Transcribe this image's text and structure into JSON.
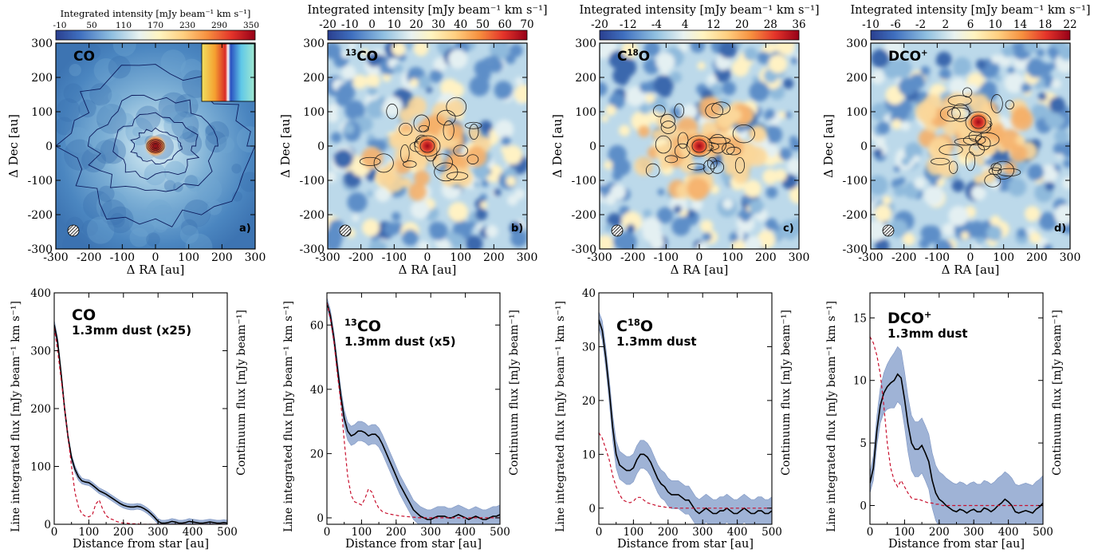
{
  "chart_data": [
    {
      "type": "heatmap",
      "panel": "a)",
      "molecule": "CO",
      "sup": "",
      "colorbar_label": "Integrated intensity [mJy beam⁻¹ km s⁻¹]",
      "colorbar_ticks": [
        "-10",
        "50",
        "110",
        "170",
        "230",
        "290",
        "350"
      ],
      "colorbar_range": [
        -10,
        350
      ],
      "xlabel": "Δ RA [au]",
      "ylabel": "Δ Dec [au]",
      "xlim": [
        -300,
        300
      ],
      "ylim": [
        -300,
        300
      ],
      "xticks": [
        "-300",
        "-200",
        "-100",
        "0",
        "100",
        "200",
        "300"
      ],
      "yticks": [
        "-300",
        "-200",
        "-100",
        "0",
        "100",
        "200",
        "300"
      ],
      "has_inset": true
    },
    {
      "type": "heatmap",
      "panel": "b)",
      "molecule": "CO",
      "sup": "13",
      "colorbar_label": "Integrated intensity [mJy beam⁻¹ km s⁻¹]",
      "colorbar_ticks": [
        "-20",
        "-10",
        "0",
        "10",
        "20",
        "30",
        "40",
        "50",
        "60",
        "70"
      ],
      "colorbar_range": [
        -20,
        70
      ],
      "xlabel": "Δ RA [au]",
      "ylabel": "Δ Dec [au]",
      "xlim": [
        -300,
        300
      ],
      "ylim": [
        -300,
        300
      ],
      "xticks": [
        "-300",
        "-200",
        "-100",
        "0",
        "100",
        "200",
        "300"
      ],
      "yticks": [
        "-300",
        "-200",
        "-100",
        "0",
        "100",
        "200",
        "300"
      ]
    },
    {
      "type": "heatmap",
      "panel": "c)",
      "molecule": "O",
      "pre": "C",
      "sup": "18",
      "colorbar_label": "Integrated intensity [mJy beam⁻¹ km s⁻¹]",
      "colorbar_ticks": [
        "-20",
        "-12",
        "-4",
        "4",
        "12",
        "20",
        "28",
        "36"
      ],
      "colorbar_range": [
        -20,
        36
      ],
      "xlabel": "Δ RA [au]",
      "ylabel": "Δ Dec [au]",
      "xlim": [
        -300,
        300
      ],
      "ylim": [
        -300,
        300
      ],
      "xticks": [
        "-300",
        "-200",
        "-100",
        "0",
        "100",
        "200",
        "300"
      ],
      "yticks": [
        "-300",
        "-200",
        "-100",
        "0",
        "100",
        "200",
        "300"
      ]
    },
    {
      "type": "heatmap",
      "panel": "d)",
      "molecule": "DCO",
      "supr": "+",
      "colorbar_label": "Integrated intensity [mJy beam⁻¹ km s⁻¹]",
      "colorbar_ticks": [
        "-10",
        "-6",
        "-2",
        "2",
        "6",
        "10",
        "14",
        "18",
        "22"
      ],
      "colorbar_range": [
        -10,
        22
      ],
      "xlabel": "Δ RA [au]",
      "ylabel": "Δ Dec [au]",
      "xlim": [
        -300,
        300
      ],
      "ylim": [
        -300,
        300
      ],
      "xticks": [
        "-300",
        "-200",
        "-100",
        "0",
        "100",
        "200",
        "300"
      ],
      "yticks": [
        "-300",
        "-200",
        "-100",
        "0",
        "100",
        "200",
        "300"
      ]
    },
    {
      "type": "line",
      "molecule": "CO",
      "sup": "",
      "dust_label": "1.3mm dust (x25)",
      "xlabel": "Distance from star [au]",
      "ylabel": "Line integrated flux [mJy beam⁻¹ km s⁻¹]",
      "ylabel_right": "Continuum flux [mJy beam⁻¹]",
      "xlim": [
        0,
        500
      ],
      "ylim": [
        0,
        400
      ],
      "xticks": [
        0,
        100,
        200,
        300,
        400,
        500
      ],
      "yticks": [
        0,
        100,
        200,
        300,
        400
      ],
      "x": [
        0,
        10,
        20,
        30,
        40,
        50,
        60,
        70,
        80,
        90,
        100,
        110,
        120,
        130,
        140,
        150,
        160,
        170,
        180,
        190,
        200,
        210,
        220,
        230,
        240,
        250,
        260,
        270,
        280,
        290,
        300,
        310,
        320,
        330,
        340,
        350,
        360,
        370,
        380,
        390,
        400,
        410,
        420,
        430,
        440,
        450,
        460,
        470,
        480,
        490,
        500
      ],
      "line": [
        345,
        315,
        260,
        200,
        150,
        115,
        95,
        82,
        75,
        73,
        72,
        68,
        63,
        58,
        55,
        52,
        48,
        44,
        40,
        36,
        33,
        31,
        30,
        30,
        31,
        30,
        27,
        23,
        18,
        12,
        5,
        2,
        2,
        3,
        5,
        4,
        2,
        2,
        3,
        5,
        4,
        3,
        2,
        2,
        3,
        4,
        3,
        2,
        2,
        3,
        2
      ],
      "err": [
        8,
        8,
        7,
        7,
        6,
        6,
        6,
        6,
        5,
        5,
        5,
        5,
        5,
        5,
        5,
        5,
        5,
        5,
        5,
        5,
        5,
        5,
        5,
        5,
        5,
        5,
        5,
        5,
        5,
        5,
        5,
        5,
        5,
        5,
        5,
        5,
        5,
        5,
        5,
        5,
        5,
        5,
        5,
        5,
        5,
        5,
        5,
        5,
        5,
        5,
        5
      ],
      "dust": [
        340,
        300,
        250,
        200,
        150,
        100,
        55,
        30,
        18,
        14,
        13,
        16,
        35,
        42,
        26,
        15,
        10,
        8,
        5,
        3,
        2,
        2,
        1,
        1,
        1,
        0,
        0,
        0,
        0,
        0,
        0,
        0,
        0,
        0,
        0,
        0,
        0,
        0,
        0,
        0,
        0,
        0,
        0,
        0,
        0,
        0,
        0,
        0,
        0,
        0,
        0
      ]
    },
    {
      "type": "line",
      "molecule": "CO",
      "sup": "13",
      "dust_label": "1.3mm dust (x5)",
      "xlabel": "Distance from star [au]",
      "ylabel": "Line integrated flux [mJy beam⁻¹ km s⁻¹]",
      "ylabel_right": "Continuum flux [mJy beam⁻¹]",
      "xlim": [
        0,
        500
      ],
      "ylim": [
        -2,
        70
      ],
      "xticks": [
        0,
        100,
        200,
        300,
        400,
        500
      ],
      "yticks": [
        0,
        20,
        40,
        60
      ],
      "x": [
        0,
        10,
        20,
        30,
        40,
        50,
        60,
        70,
        80,
        90,
        100,
        110,
        120,
        130,
        140,
        150,
        160,
        170,
        180,
        190,
        200,
        210,
        220,
        230,
        240,
        250,
        260,
        270,
        280,
        290,
        300,
        310,
        320,
        330,
        340,
        350,
        360,
        370,
        380,
        390,
        400,
        410,
        420,
        430,
        440,
        450,
        460,
        470,
        480,
        490,
        500
      ],
      "line": [
        67,
        63,
        56,
        47,
        38,
        31,
        27,
        25.5,
        26,
        27,
        27,
        26.5,
        25.5,
        26,
        26,
        25,
        23,
        20.5,
        18,
        15.5,
        13,
        10.5,
        8.5,
        6.5,
        4.5,
        2.5,
        1.5,
        0.5,
        0,
        -0.5,
        -0.5,
        0,
        0.5,
        0.5,
        0.5,
        0,
        0,
        0.5,
        1,
        0.5,
        0,
        -0.5,
        0,
        0.5,
        0,
        -0.5,
        -0.5,
        0,
        0.5,
        0.5,
        1
      ],
      "err": [
        1.5,
        1.8,
        2,
        2.2,
        2.4,
        2.6,
        2.8,
        3,
        3,
        3,
        3,
        3,
        3,
        3,
        3,
        3,
        3,
        3,
        3,
        3,
        3,
        3,
        3,
        3,
        3,
        3,
        3,
        3,
        3,
        3,
        3,
        3,
        3,
        3,
        3,
        3,
        3,
        3,
        3,
        3,
        3,
        3,
        3,
        3,
        3,
        3,
        3,
        3,
        3,
        3,
        3
      ],
      "dust": [
        67,
        62,
        55,
        45,
        36,
        24,
        13,
        7,
        5,
        4.5,
        4,
        6,
        9,
        8,
        5,
        3,
        2,
        1.5,
        1.2,
        1,
        0.8,
        0.6,
        0.5,
        0.4,
        0.3,
        0.2,
        0.1,
        0,
        0,
        0,
        0,
        0,
        0,
        0,
        0,
        0,
        0,
        0,
        0,
        0,
        0,
        0,
        0,
        0,
        0,
        0,
        0,
        0,
        0,
        0,
        0
      ]
    },
    {
      "type": "line",
      "molecule": "O",
      "pre": "C",
      "sup": "18",
      "dust_label": "1.3mm dust",
      "xlabel": "Distance from star [au]",
      "ylabel": "Line integrated flux [mJy beam⁻¹ km s⁻¹]",
      "ylabel_right": "Continuum flux [mJy beam⁻¹]",
      "xlim": [
        0,
        500
      ],
      "ylim": [
        -3,
        40
      ],
      "xticks": [
        0,
        100,
        200,
        300,
        400,
        500
      ],
      "yticks": [
        0,
        10,
        20,
        30,
        40
      ],
      "x": [
        0,
        10,
        20,
        30,
        40,
        50,
        60,
        70,
        80,
        90,
        100,
        110,
        120,
        130,
        140,
        150,
        160,
        170,
        180,
        190,
        200,
        210,
        220,
        230,
        240,
        250,
        260,
        270,
        280,
        290,
        300,
        310,
        320,
        330,
        340,
        350,
        360,
        370,
        380,
        390,
        400,
        410,
        420,
        430,
        440,
        450,
        460,
        470,
        480,
        490,
        500
      ],
      "line": [
        35,
        33,
        28,
        22,
        15,
        10,
        8,
        7.5,
        7,
        7,
        7.5,
        9,
        10,
        10,
        9.5,
        8.5,
        7,
        5.5,
        4.5,
        4,
        3,
        2.5,
        2.5,
        2.5,
        2,
        1.5,
        1.5,
        0.5,
        -0.5,
        -1,
        -0.5,
        0,
        -0.5,
        -1,
        -1,
        -0.5,
        -0.5,
        0,
        -0.5,
        -1,
        -1,
        -0.5,
        0,
        -0.5,
        -1,
        -1,
        -0.5,
        -0.5,
        -1,
        -1,
        -0.5
      ],
      "err": [
        1.5,
        1.8,
        2,
        2.2,
        2.4,
        2.5,
        2.6,
        2.6,
        2.6,
        2.6,
        2.6,
        2.6,
        2.6,
        2.6,
        2.6,
        2.6,
        2.6,
        2.6,
        2.6,
        2.6,
        2.6,
        2.6,
        2.6,
        2.6,
        2.6,
        2.6,
        2.6,
        2.6,
        2.6,
        2.6,
        2.6,
        2.6,
        2.6,
        2.6,
        2.6,
        2.6,
        2.6,
        2.6,
        2.6,
        2.6,
        2.6,
        2.6,
        2.6,
        2.6,
        2.6,
        2.6,
        2.6,
        2.6,
        2.6,
        2.6,
        2.6
      ],
      "dust": [
        14,
        13,
        11,
        9,
        6,
        4,
        2.5,
        1.5,
        1.2,
        1,
        1.3,
        2,
        2,
        1.5,
        1,
        0.8,
        0.6,
        0.4,
        0.3,
        0.2,
        0.1,
        0.1,
        0,
        0,
        0,
        0,
        0,
        0,
        0,
        0,
        0,
        0,
        0,
        0,
        0,
        0,
        0,
        0,
        0,
        0,
        0,
        0,
        0,
        0,
        0,
        0,
        0,
        0,
        0,
        0,
        0
      ]
    },
    {
      "type": "line",
      "molecule": "DCO",
      "supr": "+",
      "dust_label": "1.3mm dust",
      "xlabel": "Distance from star [au]",
      "ylabel": "Line integrated flux [mJy beam⁻¹ km s⁻¹]",
      "ylabel_right": "Continuum flux [mJy beam⁻¹]",
      "xlim": [
        0,
        500
      ],
      "ylim": [
        -1.5,
        17
      ],
      "xticks": [
        0,
        100,
        200,
        300,
        400,
        500
      ],
      "yticks": [
        0,
        5,
        10,
        15
      ],
      "x": [
        0,
        10,
        20,
        30,
        40,
        50,
        60,
        70,
        80,
        90,
        100,
        110,
        120,
        130,
        140,
        150,
        160,
        170,
        180,
        190,
        200,
        210,
        220,
        230,
        240,
        250,
        260,
        270,
        280,
        290,
        300,
        310,
        320,
        330,
        340,
        350,
        360,
        370,
        380,
        390,
        400,
        410,
        420,
        430,
        440,
        450,
        460,
        470,
        480,
        490,
        500
      ],
      "line": [
        1.8,
        3,
        6,
        8,
        9,
        9.5,
        9.8,
        10,
        10.5,
        10.2,
        8.5,
        6.5,
        5,
        4.5,
        4.5,
        4.8,
        4.2,
        3.5,
        2,
        1,
        0.5,
        0.3,
        0,
        -0.2,
        -0.4,
        -0.5,
        -0.3,
        -0.4,
        -0.6,
        -0.4,
        -0.3,
        -0.5,
        -0.5,
        -0.2,
        -0.3,
        -0.5,
        -0.3,
        0,
        0.2,
        0.5,
        0.3,
        0,
        -0.5,
        -0.6,
        -0.5,
        -0.4,
        -0.5,
        -0.6,
        -0.3,
        -0.1,
        0.2
      ],
      "err": [
        0.8,
        1,
        1.2,
        1.4,
        1.6,
        1.8,
        2,
        2.2,
        2.2,
        2.2,
        2.2,
        2.2,
        2.2,
        2.2,
        2.2,
        2.2,
        2.2,
        2.2,
        2.2,
        2.2,
        2.2,
        2.2,
        2.2,
        2.2,
        2.2,
        2.2,
        2.2,
        2.2,
        2.2,
        2.2,
        2.2,
        2.2,
        2.2,
        2.2,
        2.2,
        2.2,
        2.2,
        2.2,
        2.2,
        2.2,
        2.2,
        2.2,
        2.2,
        2.2,
        2.2,
        2.2,
        2.2,
        2.2,
        2.2,
        2.2,
        2.2
      ],
      "dust": [
        13.5,
        13,
        12,
        10.5,
        8,
        5,
        3,
        2,
        1.5,
        2,
        1.5,
        1,
        0.6,
        0.5,
        0.5,
        0.4,
        0.3,
        0.2,
        0.2,
        0.1,
        0.1,
        0,
        0,
        0,
        0,
        0,
        0,
        0,
        0,
        0,
        0,
        0,
        0,
        0,
        0,
        0,
        0,
        0,
        0,
        0,
        0,
        0,
        0,
        0,
        0,
        0,
        0,
        0,
        0,
        0,
        0
      ]
    }
  ]
}
